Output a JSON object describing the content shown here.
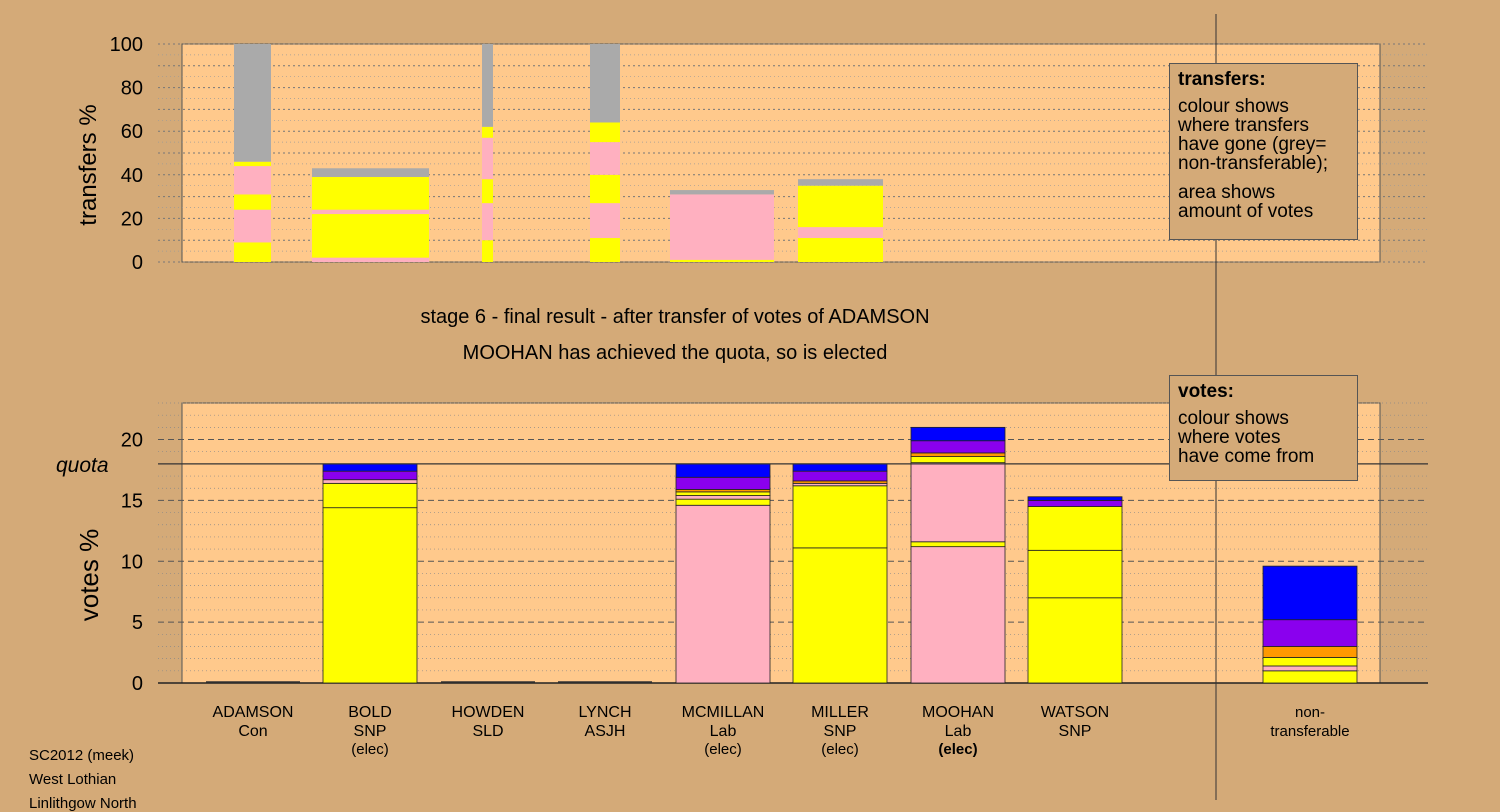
{
  "headings": {
    "stage": "stage 6 - final result - after transfer of votes of ADAMSON",
    "result": "MOOHAN has achieved the quota, so is elected"
  },
  "transfers_legend": {
    "title": "transfers:",
    "lines": [
      "colour shows",
      "where transfers",
      "have gone (grey=",
      "non-transferable);"
    ],
    "lines2": [
      "area shows",
      "amount of votes"
    ]
  },
  "votes_legend": {
    "title": "votes:",
    "lines": [
      "colour shows",
      "where votes",
      "have come from"
    ]
  },
  "footer": {
    "line1": "SC2012 (meek)",
    "line2": "West Lothian",
    "line3": "Linlithgow North"
  },
  "colors": {
    "background": "#d4aa78",
    "plot_panel": "#ffc98c",
    "SNP": "#ffff00",
    "Lab": "#ffb0c0",
    "Con": "#0000ff",
    "SLD": "#ff9900",
    "ASJH": "#8a00ee",
    "nontransferable": "#aaaaaa"
  },
  "chart_data": [
    {
      "type": "bar",
      "ylabel": "transfers %",
      "ylim": [
        0,
        100
      ],
      "yticks": [
        0,
        20,
        40,
        60,
        80,
        100
      ],
      "grid": true,
      "description_note": "transfer percentages from each candidate's eliminated/surplus votes",
      "bars": [
        {
          "candidate": "ADAMSON",
          "segments": [
            {
              "color": "SNP",
              "value": 9
            },
            {
              "color": "Lab",
              "value": 15
            },
            {
              "color": "SNP",
              "value": 7
            },
            {
              "color": "Lab",
              "value": 13
            },
            {
              "color": "SNP",
              "value": 2
            },
            {
              "color": "nontransferable",
              "value": 54
            }
          ]
        },
        {
          "candidate": "BOLD",
          "segments": [
            {
              "color": "Lab",
              "value": 2
            },
            {
              "color": "SNP",
              "value": 20
            },
            {
              "color": "Lab",
              "value": 2
            },
            {
              "color": "SNP",
              "value": 15
            },
            {
              "color": "nontransferable",
              "value": 4
            }
          ]
        },
        {
          "candidate": "HOWDEN",
          "segments": [
            {
              "color": "SNP",
              "value": 10
            },
            {
              "color": "Lab",
              "value": 17
            },
            {
              "color": "SNP",
              "value": 11
            },
            {
              "color": "Lab",
              "value": 19
            },
            {
              "color": "SNP",
              "value": 5
            },
            {
              "color": "nontransferable",
              "value": 38
            }
          ]
        },
        {
          "candidate": "LYNCH",
          "segments": [
            {
              "color": "SNP",
              "value": 11
            },
            {
              "color": "Lab",
              "value": 16
            },
            {
              "color": "SNP",
              "value": 13
            },
            {
              "color": "Lab",
              "value": 15
            },
            {
              "color": "SNP",
              "value": 9
            },
            {
              "color": "nontransferable",
              "value": 36
            }
          ]
        },
        {
          "candidate": "MCMILLAN",
          "segments": [
            {
              "color": "SNP",
              "value": 1
            },
            {
              "color": "Lab",
              "value": 30
            },
            {
              "color": "nontransferable",
              "value": 2
            }
          ]
        },
        {
          "candidate": "MILLER",
          "segments": [
            {
              "color": "SNP",
              "value": 11
            },
            {
              "color": "Lab",
              "value": 5
            },
            {
              "color": "SNP",
              "value": 19
            },
            {
              "color": "nontransferable",
              "value": 3
            }
          ]
        }
      ]
    },
    {
      "type": "bar",
      "ylabel": "votes %",
      "ylim": [
        0,
        23
      ],
      "yticks": [
        0,
        5,
        10,
        15,
        20
      ],
      "quota": 18,
      "quota_label": "quota",
      "grid": true,
      "categories": [
        {
          "name": "ADAMSON",
          "party": "Con",
          "status": ""
        },
        {
          "name": "BOLD",
          "party": "SNP",
          "status": "(elec)"
        },
        {
          "name": "HOWDEN",
          "party": "SLD",
          "status": ""
        },
        {
          "name": "LYNCH",
          "party": "ASJH",
          "status": ""
        },
        {
          "name": "MCMILLAN",
          "party": "Lab",
          "status": "(elec)"
        },
        {
          "name": "MILLER",
          "party": "SNP",
          "status": "(elec)"
        },
        {
          "name": "MOOHAN",
          "party": "Lab",
          "status": "(elec)",
          "status_bold": true
        },
        {
          "name": "WATSON",
          "party": "SNP",
          "status": ""
        },
        {
          "name": "non-",
          "party": "transferable",
          "status": ""
        }
      ],
      "bars": [
        {
          "total": 0,
          "segments": []
        },
        {
          "total": 18,
          "segments": [
            {
              "color": "SNP",
              "value": 14.4
            },
            {
              "color": "SNP",
              "value": 2.0
            },
            {
              "color": "Lab",
              "value": 0.3
            },
            {
              "color": "ASJH",
              "value": 0.7
            },
            {
              "color": "Con",
              "value": 0.6
            }
          ]
        },
        {
          "total": 0,
          "segments": []
        },
        {
          "total": 0,
          "segments": []
        },
        {
          "total": 18,
          "segments": [
            {
              "color": "Lab",
              "value": 14.6
            },
            {
              "color": "SNP",
              "value": 0.5
            },
            {
              "color": "Lab",
              "value": 0.3
            },
            {
              "color": "SNP",
              "value": 0.3
            },
            {
              "color": "SLD",
              "value": 0.2
            },
            {
              "color": "ASJH",
              "value": 1.0
            },
            {
              "color": "Con",
              "value": 1.1
            }
          ]
        },
        {
          "total": 18,
          "segments": [
            {
              "color": "SNP",
              "value": 11.1
            },
            {
              "color": "SNP",
              "value": 5.1
            },
            {
              "color": "Lab",
              "value": 0.2
            },
            {
              "color": "SLD",
              "value": 0.2
            },
            {
              "color": "ASJH",
              "value": 0.8
            },
            {
              "color": "Con",
              "value": 0.6
            }
          ]
        },
        {
          "total": 21,
          "segments": [
            {
              "color": "Lab",
              "value": 11.2
            },
            {
              "color": "SNP",
              "value": 0.4
            },
            {
              "color": "Lab",
              "value": 6.5
            },
            {
              "color": "SNP",
              "value": 0.5
            },
            {
              "color": "SLD",
              "value": 0.3
            },
            {
              "color": "ASJH",
              "value": 1.0
            },
            {
              "color": "Con",
              "value": 1.1
            }
          ]
        },
        {
          "total": 15.3,
          "segments": [
            {
              "color": "SNP",
              "value": 7.0
            },
            {
              "color": "SNP",
              "value": 3.9
            },
            {
              "color": "SNP",
              "value": 3.6
            },
            {
              "color": "ASJH",
              "value": 0.5
            },
            {
              "color": "Con",
              "value": 0.3
            }
          ]
        },
        {
          "total": 9.6,
          "segments": [
            {
              "color": "SNP",
              "value": 1.0
            },
            {
              "color": "Lab",
              "value": 0.4
            },
            {
              "color": "SNP",
              "value": 0.7
            },
            {
              "color": "SLD",
              "value": 0.9
            },
            {
              "color": "ASJH",
              "value": 2.2
            },
            {
              "color": "Con",
              "value": 4.4
            }
          ]
        }
      ]
    }
  ]
}
